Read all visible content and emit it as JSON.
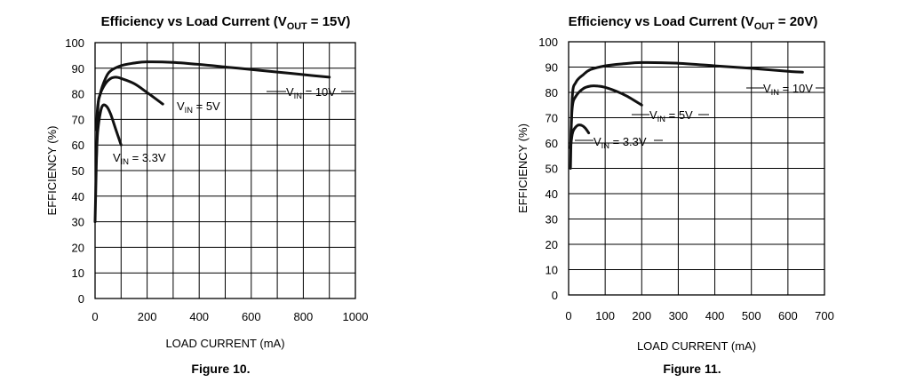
{
  "chart_data": [
    {
      "type": "line",
      "title": {
        "pre": "Efficiency vs Load Current (V",
        "sub": "OUT",
        "post": " = 15V)"
      },
      "figure_caption": "Figure 10.",
      "xlabel": "LOAD CURRENT (mA)",
      "ylabel": "EFFICIENCY (%)",
      "xlim": [
        0,
        1000
      ],
      "ylim": [
        0,
        100
      ],
      "xticks": [
        0,
        200,
        400,
        600,
        800,
        1000
      ],
      "yticks": [
        0,
        10,
        20,
        30,
        40,
        50,
        60,
        70,
        80,
        90,
        100
      ],
      "grid": true,
      "series": [
        {
          "name": "VIN = 10V",
          "label": {
            "pre": "V",
            "sub": "IN",
            "post": " = 10V"
          },
          "x": [
            0,
            10,
            20,
            40,
            60,
            100,
            150,
            200,
            300,
            400,
            500,
            600,
            700,
            800,
            900
          ],
          "y": [
            30,
            72,
            80,
            86,
            89,
            91,
            92,
            92.5,
            92.3,
            91.5,
            90.5,
            89.5,
            88.5,
            87.5,
            86.5
          ]
        },
        {
          "name": "VIN = 5V",
          "label": {
            "pre": "V",
            "sub": "IN",
            "post": " = 5V"
          },
          "x": [
            5,
            10,
            20,
            40,
            60,
            80,
            100,
            150,
            200,
            260
          ],
          "y": [
            66,
            75,
            80,
            84,
            86,
            86.5,
            86,
            84,
            80.5,
            76
          ]
        },
        {
          "name": "VIN = 3.3V",
          "label": {
            "pre": "V",
            "sub": "IN",
            "post": " = 3.3V"
          },
          "x": [
            5,
            10,
            20,
            30,
            45,
            60,
            80,
            100
          ],
          "y": [
            55,
            65,
            72.5,
            75.5,
            75,
            72,
            66,
            60
          ]
        }
      ]
    },
    {
      "type": "line",
      "title": {
        "pre": "Efficiency vs Load Current (V",
        "sub": "OUT",
        "post": " = 20V)"
      },
      "figure_caption": "Figure 11.",
      "xlabel": "LOAD CURRENT (mA)",
      "ylabel": "EFFICIENCY (%)",
      "xlim": [
        0,
        700
      ],
      "ylim": [
        0,
        100
      ],
      "xticks": [
        0,
        100,
        200,
        300,
        400,
        500,
        600,
        700
      ],
      "yticks": [
        0,
        10,
        20,
        30,
        40,
        50,
        60,
        70,
        80,
        90,
        100
      ],
      "grid": true,
      "series": [
        {
          "name": "VIN = 10V",
          "label": {
            "pre": "V",
            "sub": "IN",
            "post": " = 10V"
          },
          "x": [
            5,
            10,
            20,
            40,
            60,
            100,
            150,
            200,
            300,
            400,
            500,
            600,
            640
          ],
          "y": [
            50,
            78,
            84,
            87,
            89,
            90.5,
            91.3,
            91.8,
            91.5,
            90.5,
            89.5,
            88.3,
            88
          ]
        },
        {
          "name": "VIN = 5V",
          "label": {
            "pre": "V",
            "sub": "IN",
            "post": " = 5V"
          },
          "x": [
            5,
            10,
            20,
            40,
            60,
            80,
            100,
            130,
            160,
            200
          ],
          "y": [
            58,
            74,
            78.5,
            81.5,
            82.5,
            82.5,
            82,
            80.5,
            78.5,
            75
          ]
        },
        {
          "name": "VIN = 3.3V",
          "label": {
            "pre": "V",
            "sub": "IN",
            "post": " = 3.3V"
          },
          "x": [
            5,
            10,
            15,
            25,
            35,
            45,
            55
          ],
          "y": [
            58,
            63.5,
            65.5,
            67,
            67,
            66,
            64
          ]
        }
      ]
    }
  ]
}
